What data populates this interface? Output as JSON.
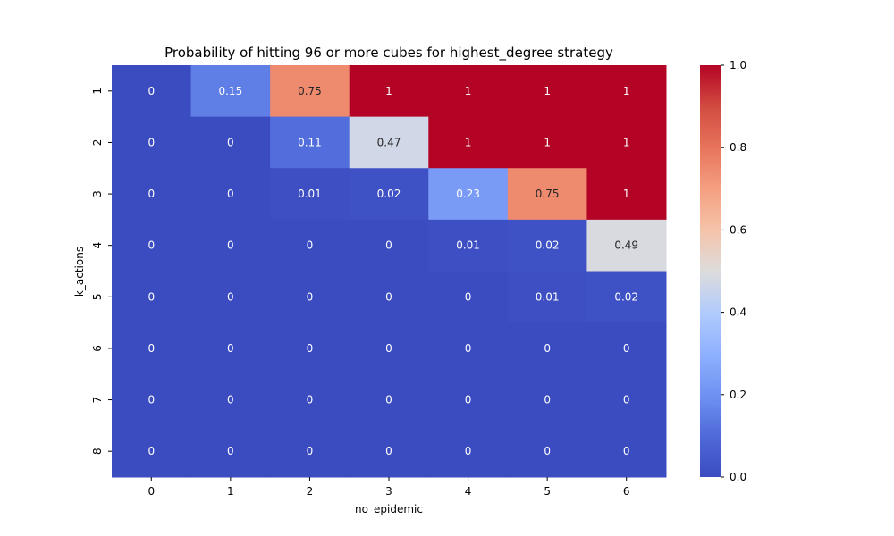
{
  "chart_data": {
    "type": "heatmap",
    "title": "Probability of hitting 96 or more cubes for highest_degree strategy",
    "xlabel": "no_epidemic",
    "ylabel": "k_actions",
    "x_categories": [
      "0",
      "1",
      "2",
      "3",
      "4",
      "5",
      "6"
    ],
    "y_categories": [
      "1",
      "2",
      "3",
      "4",
      "5",
      "6",
      "7",
      "8"
    ],
    "values": [
      [
        0,
        0.15,
        0.75,
        1,
        1,
        1,
        1
      ],
      [
        0,
        0,
        0.11,
        0.47,
        1,
        1,
        1
      ],
      [
        0,
        0,
        0.01,
        0.02,
        0.23,
        0.75,
        1
      ],
      [
        0,
        0,
        0,
        0,
        0.01,
        0.02,
        0.49
      ],
      [
        0,
        0,
        0,
        0,
        0,
        0.01,
        0.02
      ],
      [
        0,
        0,
        0,
        0,
        0,
        0,
        0
      ],
      [
        0,
        0,
        0,
        0,
        0,
        0,
        0
      ],
      [
        0,
        0,
        0,
        0,
        0,
        0,
        0
      ]
    ],
    "colormap": "coolwarm",
    "vmin": 0,
    "vmax": 1,
    "colorbar_ticks": [
      "0.0",
      "0.2",
      "0.4",
      "0.6",
      "0.8",
      "1.0"
    ],
    "annotated": true
  }
}
